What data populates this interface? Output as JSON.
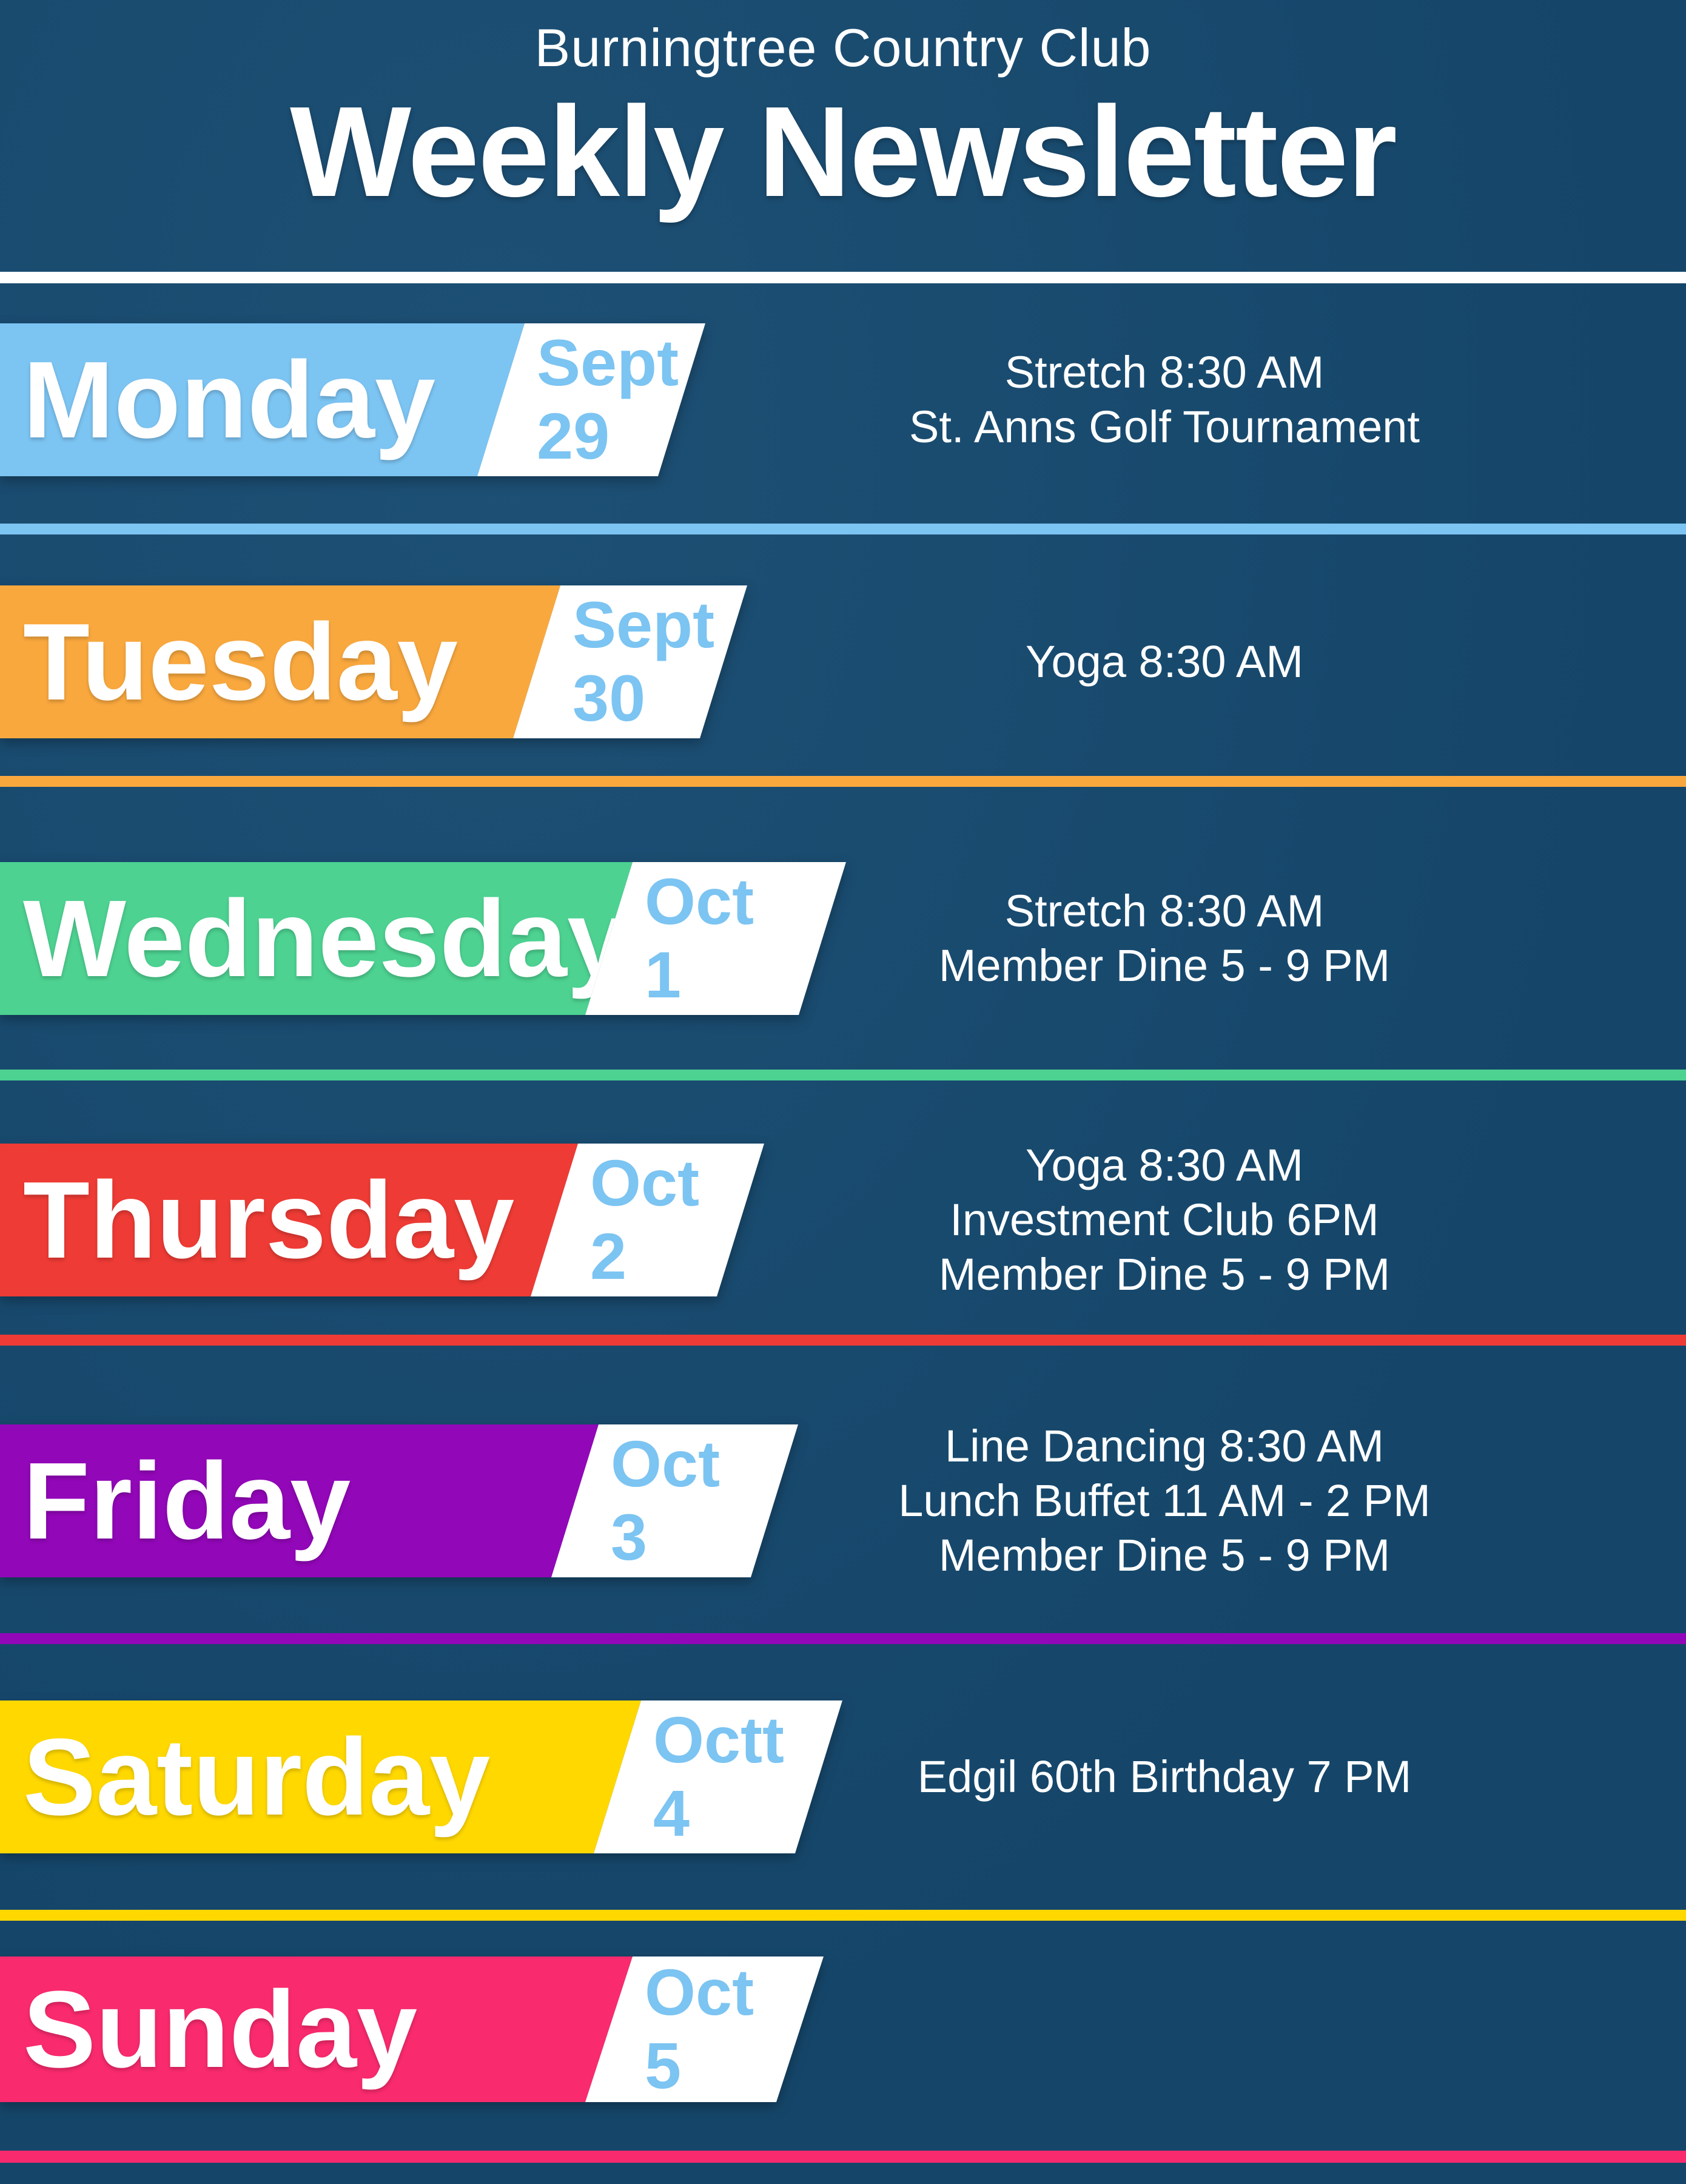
{
  "header": {
    "club_name": "Burningtree Country Club",
    "title": "Weekly Newsletter"
  },
  "days": [
    {
      "name": "Monday",
      "month": "Sept",
      "day": "29",
      "color": "#7cc4f2",
      "events": [
        "Stretch 8:30 AM",
        "St. Anns Golf Tournament"
      ]
    },
    {
      "name": "Tuesday",
      "month": "Sept",
      "day": "30",
      "color": "#f9a83e",
      "events": [
        "Yoga 8:30 AM"
      ]
    },
    {
      "name": "Wednesday",
      "month": "Oct",
      "day": "1",
      "color": "#4dd291",
      "events": [
        "Stretch 8:30 AM",
        "Member Dine 5 - 9 PM"
      ]
    },
    {
      "name": "Thursday",
      "month": "Oct",
      "day": "2",
      "color": "#ee3b35",
      "events": [
        "Yoga 8:30 AM",
        "Investment Club 6PM",
        "Member Dine 5 - 9 PM"
      ]
    },
    {
      "name": "Friday",
      "month": "Oct",
      "day": "3",
      "color": "#9207b8",
      "events": [
        "Line Dancing 8:30 AM",
        "Lunch Buffet 11 AM - 2 PM",
        "Member Dine 5 - 9 PM"
      ]
    },
    {
      "name": "Saturday",
      "month": "Octt",
      "day": "4",
      "color": "#ffd800",
      "events": [
        "Edgil 60th Birthday 7 PM"
      ]
    },
    {
      "name": "Sunday",
      "month": "Oct",
      "day": "5",
      "color": "#f92a6e",
      "events": []
    }
  ],
  "colors": {
    "background": "#164a70",
    "header_text": "#ffffff",
    "header_rule": "#ffffff",
    "date_text": "#7cc4f2",
    "event_text": "#ffffff",
    "date_tag_background": "#ffffff"
  }
}
